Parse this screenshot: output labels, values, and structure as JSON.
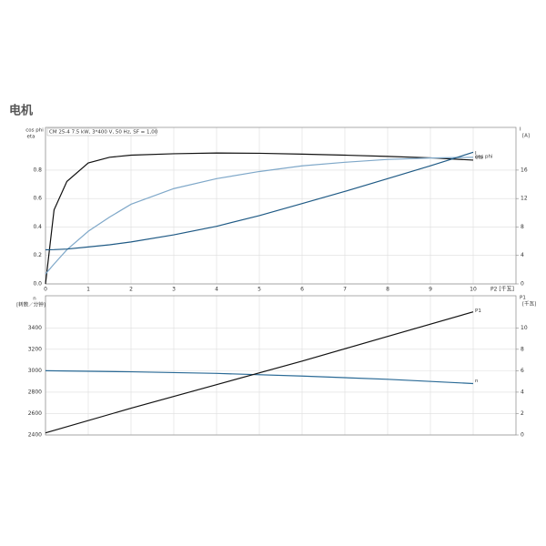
{
  "page_title": "电机",
  "chart_data": [
    {
      "type": "line",
      "annotation": "CM 25-4   7.5 kW, 3*400 V, 50 Hz, SF = 1,00",
      "ylabel": [
        "cos phi",
        "eta"
      ],
      "y2label": [
        "I",
        "[A]"
      ],
      "xlabel": "P2 [千瓦]",
      "x": [
        0,
        0.2,
        0.5,
        1,
        1.5,
        2,
        3,
        4,
        5,
        6,
        7,
        8,
        9,
        10
      ],
      "series": [
        {
          "name": "eta",
          "color": "#111111",
          "values": [
            0,
            0.52,
            0.72,
            0.85,
            0.89,
            0.905,
            0.915,
            0.92,
            0.918,
            0.912,
            0.905,
            0.896,
            0.886,
            0.87
          ]
        },
        {
          "name": "cos phi",
          "color": "#7fa8c9",
          "values": [
            0.07,
            0.14,
            0.24,
            0.37,
            0.47,
            0.56,
            0.67,
            0.74,
            0.79,
            0.83,
            0.855,
            0.875,
            0.885,
            0.89
          ]
        },
        {
          "name": "I",
          "color": "#1f5a85",
          "axis": "y2",
          "values": [
            4.8,
            4.82,
            4.9,
            5.2,
            5.5,
            5.9,
            6.9,
            8.1,
            9.6,
            11.3,
            13.0,
            14.8,
            16.6,
            18.5
          ]
        }
      ],
      "xlim": [
        0,
        11
      ],
      "xticks": [
        0,
        1,
        2,
        3,
        4,
        5,
        6,
        7,
        8,
        9,
        10
      ],
      "ylim": [
        0,
        1.1
      ],
      "yticks": [
        {
          "value": 0,
          "label": "0.0"
        },
        0.2,
        0.4,
        0.6,
        0.8
      ],
      "y2lim": [
        0,
        22
      ],
      "y2ticks": [
        0,
        4,
        8,
        12,
        16
      ],
      "grid": true
    },
    {
      "type": "line",
      "ylabel": [
        "n",
        "[转数／分钟]"
      ],
      "y2label": [
        "P1",
        "[千瓦]"
      ],
      "x": [
        0,
        2,
        4,
        6,
        8,
        10
      ],
      "series": [
        {
          "name": "n",
          "color": "#2a6a96",
          "values": [
            3000,
            2990,
            2975,
            2950,
            2920,
            2880
          ]
        },
        {
          "name": "P1",
          "color": "#111111",
          "axis": "y2",
          "values": [
            0.2,
            2.5,
            4.7,
            6.9,
            9.2,
            11.5
          ]
        }
      ],
      "xlim": [
        0,
        11
      ],
      "xticks": [
        0,
        1,
        2,
        3,
        4,
        5,
        6,
        7,
        8,
        9,
        10
      ],
      "xtick_labels": false,
      "ylim": [
        2400,
        3700
      ],
      "yticks": [
        2400,
        2600,
        2800,
        3000,
        3200,
        3400
      ],
      "y2lim": [
        0,
        13
      ],
      "y2ticks": [
        0,
        2,
        4,
        6,
        8,
        10
      ],
      "grid": true
    }
  ]
}
